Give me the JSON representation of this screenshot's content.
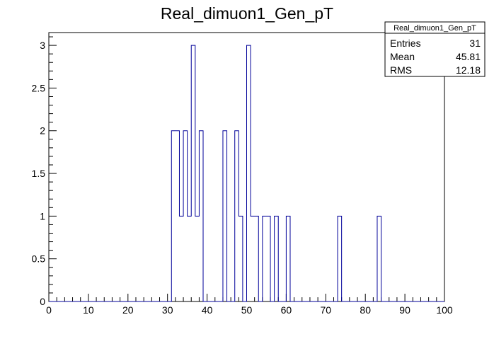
{
  "chart_data": {
    "type": "bar",
    "title": "Real_dimuon1_Gen_pT",
    "xlabel": "",
    "ylabel": "",
    "xlim": [
      0,
      100
    ],
    "ylim": [
      0,
      3.15
    ],
    "bin_width": 1,
    "x_ticks": [
      "0",
      "10",
      "20",
      "30",
      "40",
      "50",
      "60",
      "70",
      "80",
      "90",
      "100"
    ],
    "y_ticks": [
      "0",
      "0.5",
      "1",
      "1.5",
      "2",
      "2.5",
      "3"
    ],
    "x": [
      31,
      32,
      33,
      34,
      35,
      36,
      37,
      38,
      39,
      44,
      45,
      47,
      48,
      50,
      51,
      52,
      54,
      55,
      57,
      60,
      73,
      83
    ],
    "values": [
      2,
      2,
      1,
      2,
      1,
      3,
      1,
      2,
      0,
      2,
      0,
      2,
      1,
      3,
      1,
      1,
      1,
      1,
      1,
      1,
      1,
      1
    ],
    "line_color": "#000099",
    "grid": false,
    "legend": "none"
  },
  "stats": {
    "title": "Real_dimuon1_Gen_pT",
    "rows": [
      {
        "label": "Entries",
        "value": "31"
      },
      {
        "label": "Mean",
        "value": "45.81"
      },
      {
        "label": "RMS",
        "value": "12.18"
      }
    ]
  }
}
